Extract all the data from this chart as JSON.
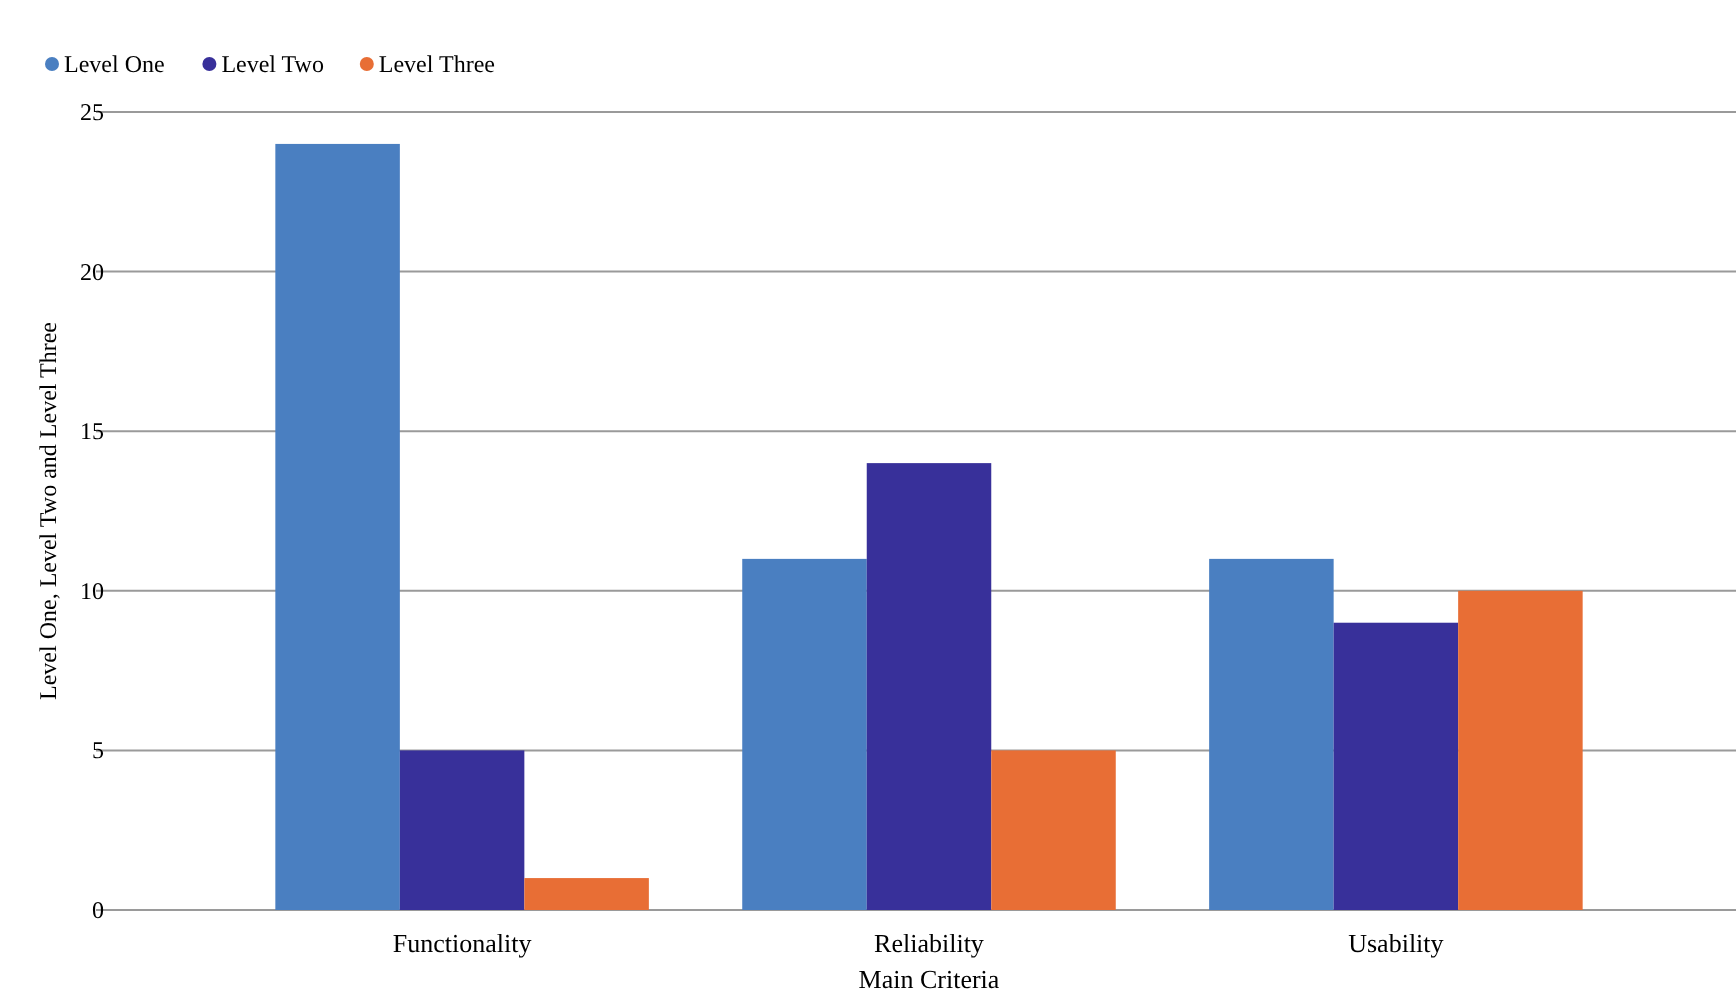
{
  "chart_data": {
    "type": "bar",
    "xlabel": "Main Criteria",
    "ylabel": "Level One, Level Two and Level Three",
    "categories": [
      "Functionality",
      "Reliability",
      "Usability"
    ],
    "series": [
      {
        "name": "Level One",
        "color": "#4a7fc1",
        "values": [
          24,
          11,
          11
        ]
      },
      {
        "name": "Level Two",
        "color": "#38309a",
        "values": [
          5,
          14,
          9
        ]
      },
      {
        "name": "Level Three",
        "color": "#e86e35",
        "values": [
          1,
          5,
          10
        ]
      }
    ],
    "ylim": [
      0,
      25
    ],
    "yticks": [
      0,
      5,
      10,
      15,
      20,
      25
    ],
    "grid": "y",
    "legend": "top left"
  }
}
